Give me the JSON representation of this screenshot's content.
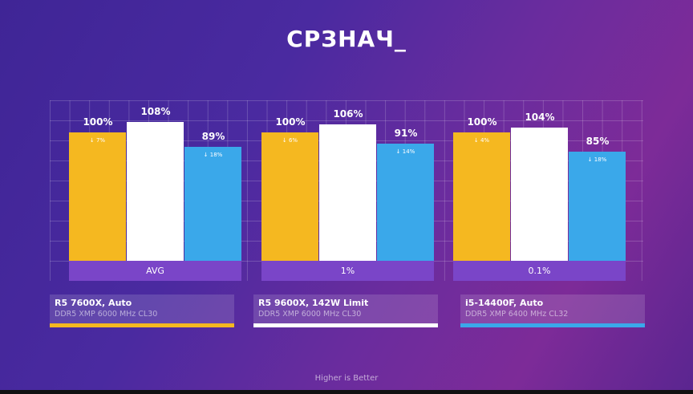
{
  "chart_data": {
    "type": "bar",
    "title": "СРЗНАЧ_",
    "categories": [
      "AVG",
      "1%",
      "0.1%"
    ],
    "series": [
      {
        "name": "R5 7600X, Auto",
        "subtitle": "DDR5 XMP 6000 MHz CL30",
        "color": "#f5b820",
        "values": [
          100,
          100,
          100
        ],
        "drops": [
          "7%",
          "6%",
          "4%"
        ]
      },
      {
        "name": "R5 9600X, 142W Limit",
        "subtitle": "DDR5 XMP 6000 MHz CL30",
        "color": "#ffffff",
        "values": [
          108,
          106,
          104
        ],
        "drops": [
          "",
          "",
          ""
        ]
      },
      {
        "name": "i5-14400F, Auto",
        "subtitle": "DDR5 XMP 6400 MHz CL32",
        "color": "#3aa8ea",
        "values": [
          89,
          91,
          85
        ],
        "drops": [
          "18%",
          "14%",
          "18%"
        ]
      }
    ],
    "value_suffix": "%",
    "ylim": [
      0,
      140
    ],
    "footer": "Higher is Better"
  }
}
